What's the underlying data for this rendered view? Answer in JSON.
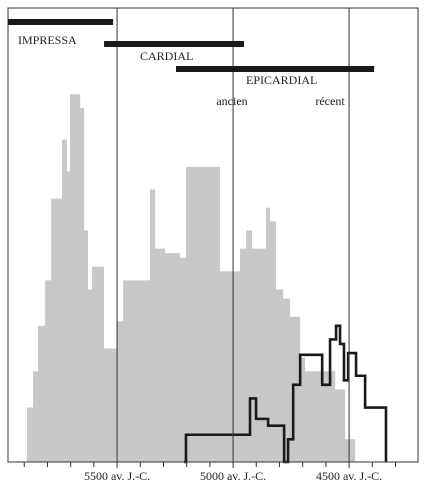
{
  "chart_data": {
    "type": "step-area",
    "xlim": [
      5970,
      4203
    ],
    "ylim": [
      0,
      100
    ],
    "grid": true,
    "xticks": [
      {
        "value": 5500,
        "label": "5500 av. J.-C."
      },
      {
        "value": 5000,
        "label": "5000 av. J.-C."
      },
      {
        "value": 4500,
        "label": "4500 av. J.-C."
      }
    ],
    "xminorticks": [
      5900,
      5800,
      5700,
      5600,
      5400,
      5300,
      5200,
      5100,
      4900,
      4800,
      4700,
      4600,
      4400,
      4300
    ],
    "series": [
      {
        "color": "#c8c8c8",
        "fill": true,
        "x": [
          5888,
          5862,
          5841,
          5810,
          5784,
          5737,
          5716,
          5703,
          5659,
          5642,
          5625,
          5608,
          5556,
          5500,
          5474,
          5358,
          5336,
          5293,
          5228,
          5203,
          5056,
          4970,
          4944,
          4918,
          4858,
          4841,
          4815,
          4784,
          4754,
          4711,
          4690,
          4560,
          4517,
          4474
        ],
        "values": [
          12,
          20,
          30,
          40,
          58,
          71,
          64,
          81,
          78,
          51,
          38,
          43,
          25,
          31,
          40,
          60,
          47,
          46,
          45,
          65,
          42,
          47,
          51,
          47,
          56,
          53,
          38,
          36,
          32,
          23,
          20,
          16,
          5,
          0
        ]
      },
      {
        "color": "#1a1a1a",
        "fill": false,
        "x": [
          5211,
          5203,
          4927,
          4901,
          4849,
          4780,
          4763,
          4741,
          4711,
          4616,
          4582,
          4556,
          4539,
          4522,
          4504,
          4470,
          4431,
          4341
        ],
        "values": [
          0,
          6,
          14,
          9.5,
          8,
          0,
          5,
          17,
          23.6,
          17,
          27,
          30,
          26,
          18,
          24,
          19,
          12,
          0
        ]
      }
    ],
    "phases": [
      {
        "label": "IMPRESSA",
        "start": 5970,
        "end": 5517
      },
      {
        "label": "CARDIAL",
        "start": 5556,
        "end": 4953
      },
      {
        "label": "EPICARDIAL",
        "start": 5246,
        "end": 4392,
        "sublabels": [
          "ancien",
          "récent"
        ]
      }
    ]
  }
}
